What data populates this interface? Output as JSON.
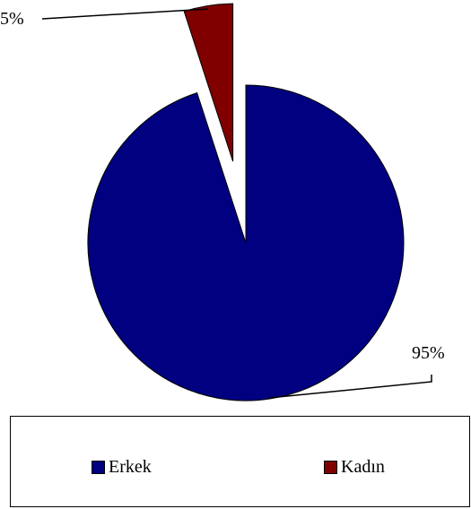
{
  "chart_data": {
    "type": "pie",
    "categories": [
      "Erkek",
      "Kadın"
    ],
    "values": [
      95,
      5
    ],
    "data_labels": [
      "95%",
      "5%"
    ],
    "colors": [
      "#000080",
      "#800000"
    ],
    "exploded": [
      false,
      true
    ],
    "title": "",
    "legend_position": "bottom"
  }
}
